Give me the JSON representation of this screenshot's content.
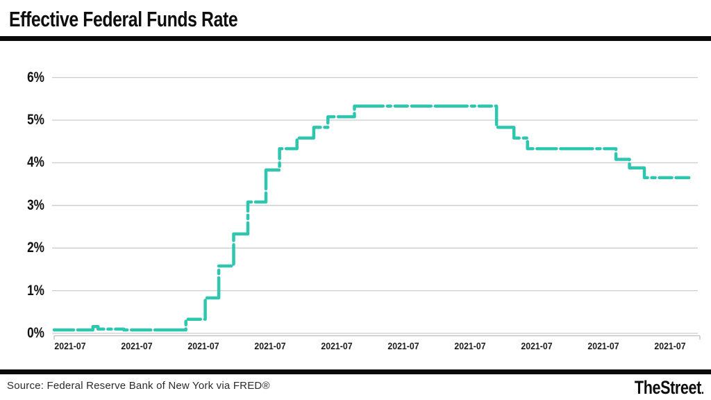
{
  "header": {
    "title": "Effective Federal Funds Rate"
  },
  "footer": {
    "source": "Source: Federal Reserve Bank of New York via FRED®",
    "brand": "TheStreet",
    "brand_suffix": "."
  },
  "colors": {
    "line": "#2fc6af",
    "grid": "#cccccc",
    "axis": "#bdbdbd",
    "text": "#111111"
  },
  "chart_data": {
    "type": "line",
    "subtype": "step-after, dashed stroke",
    "title": "Effective Federal Funds Rate",
    "series_name": "Effective Federal Funds Rate (%)",
    "xlabel": "",
    "ylabel": "",
    "ylim": [
      0,
      6
    ],
    "grid": true,
    "legend_position": "none",
    "y_tick_labels": [
      "6%",
      "5%",
      "4%",
      "3%",
      "2%",
      "1%",
      "0%"
    ],
    "y_tick_values": [
      6,
      5,
      4,
      3,
      2,
      1,
      0
    ],
    "x_tick_labels": [
      "2021-07",
      "2021-07",
      "2021-07",
      "2021-07",
      "2021-07",
      "2021-07",
      "2021-07",
      "2021-07",
      "2021-07",
      "2021-07"
    ],
    "steps_note": "pairs of [fraction along x-axis where rate takes effect, rate in percent]; step-after line",
    "steps": [
      [
        0.0,
        0.08
      ],
      [
        0.06,
        0.16
      ],
      [
        0.068,
        0.1
      ],
      [
        0.108,
        0.08
      ],
      [
        0.204,
        0.33
      ],
      [
        0.234,
        0.83
      ],
      [
        0.255,
        1.58
      ],
      [
        0.278,
        2.33
      ],
      [
        0.3,
        3.08
      ],
      [
        0.328,
        3.83
      ],
      [
        0.349,
        4.33
      ],
      [
        0.376,
        4.58
      ],
      [
        0.402,
        4.83
      ],
      [
        0.424,
        5.08
      ],
      [
        0.465,
        5.33
      ],
      [
        0.685,
        4.83
      ],
      [
        0.712,
        4.58
      ],
      [
        0.733,
        4.33
      ],
      [
        0.87,
        4.08
      ],
      [
        0.891,
        3.88
      ],
      [
        0.914,
        3.65
      ],
      [
        0.983,
        3.65
      ]
    ]
  }
}
